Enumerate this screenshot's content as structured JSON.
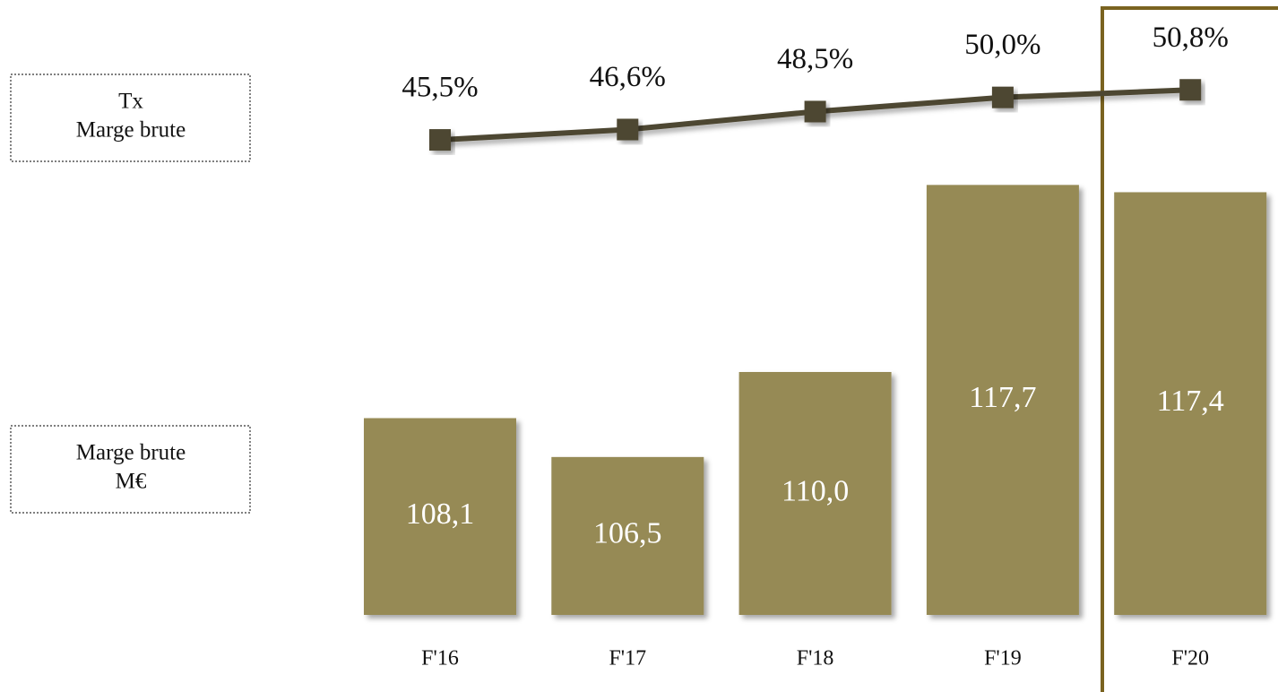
{
  "chart_data": {
    "type": "bar",
    "categories": [
      "F'16",
      "F'17",
      "F'18",
      "F'19",
      "F'20"
    ],
    "series": [
      {
        "type": "line",
        "axis": "y2",
        "color": "#4d4630",
        "values": [
          45.5,
          46.6,
          48.5,
          50.0,
          50.8
        ],
        "value_labels": [
          "45,5%",
          "46,6%",
          "48,5%",
          "50,0%",
          "50,8%"
        ]
      },
      {
        "type": "bar",
        "color": "#968a55",
        "values": [
          108.1,
          106.5,
          110.0,
          117.7,
          117.4
        ],
        "value_labels": [
          "108,1",
          "106,5",
          "110,0",
          "117,7",
          "117,4"
        ]
      }
    ],
    "ylim": [
      100,
      120
    ],
    "y2lim": [
      40,
      55
    ],
    "annotations": [
      [
        "Tx",
        "Marge brute"
      ],
      [
        "Marge brute",
        "M€"
      ]
    ]
  }
}
